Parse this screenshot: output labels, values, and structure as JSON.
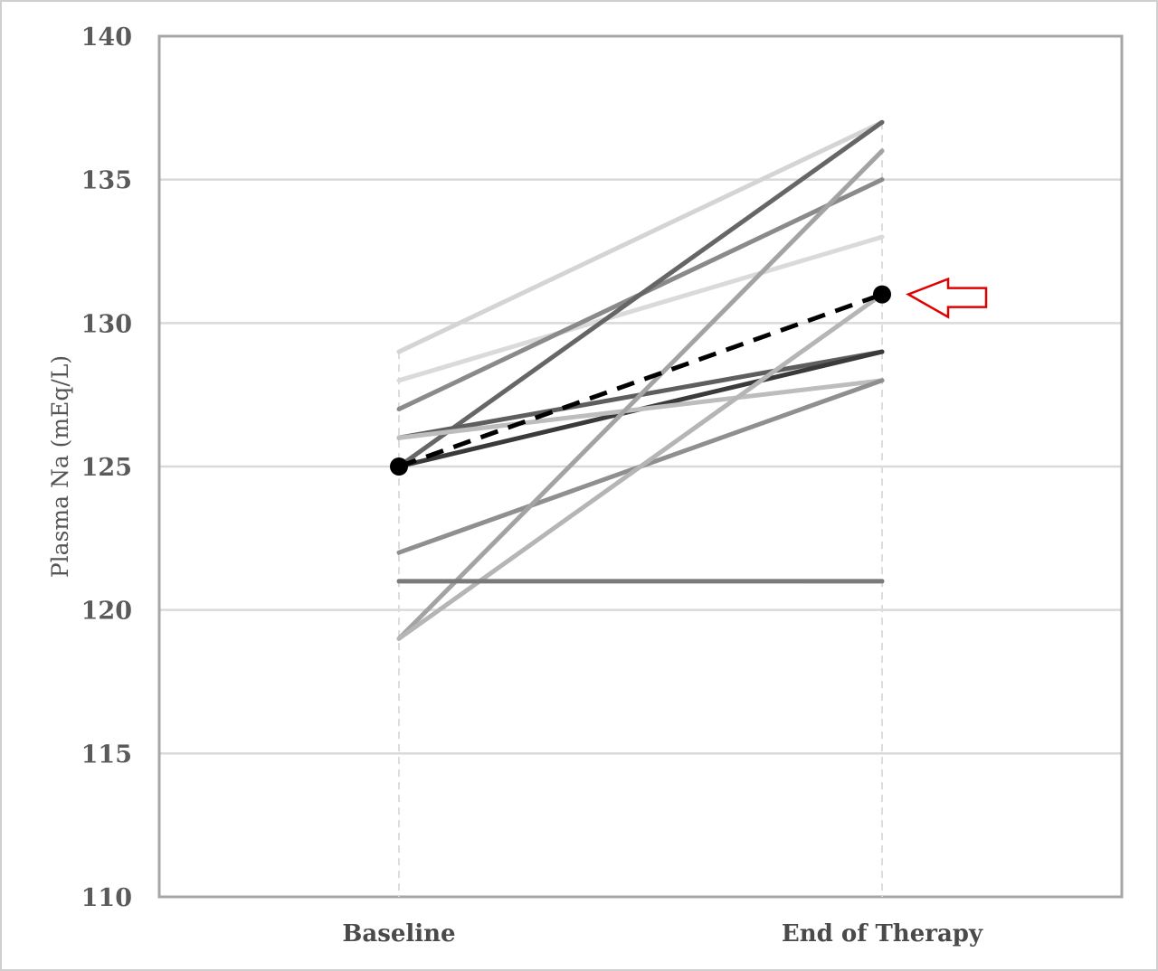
{
  "chart_data": {
    "type": "line",
    "title": "",
    "xlabel": "",
    "ylabel": "Plasma Na (mEq/L)",
    "categories": [
      "Baseline",
      "End of Therapy"
    ],
    "ylim": [
      110,
      140
    ],
    "yticks": [
      110,
      115,
      120,
      125,
      130,
      135,
      140
    ],
    "grid": true,
    "legend": "none",
    "series": [
      {
        "values": [
          129,
          137
        ],
        "color": "#d4d4d4",
        "style": "solid"
      },
      {
        "values": [
          128,
          133
        ],
        "color": "#dadada",
        "style": "solid"
      },
      {
        "values": [
          127,
          135
        ],
        "color": "#8a8a8a",
        "style": "solid"
      },
      {
        "values": [
          125,
          137
        ],
        "color": "#666666",
        "style": "solid"
      },
      {
        "values": [
          126,
          129
        ],
        "color": "#5e5e5e",
        "style": "solid"
      },
      {
        "values": [
          125,
          129
        ],
        "color": "#3a3a3a",
        "style": "solid"
      },
      {
        "values": [
          126,
          128
        ],
        "color": "#bdbdbd",
        "style": "solid"
      },
      {
        "values": [
          122,
          128
        ],
        "color": "#8f8f8f",
        "style": "solid"
      },
      {
        "values": [
          119,
          136
        ],
        "color": "#a3a3a3",
        "style": "solid"
      },
      {
        "values": [
          119,
          131
        ],
        "color": "#b5b5b5",
        "style": "solid"
      },
      {
        "values": [
          121,
          121
        ],
        "color": "#7a7a7a",
        "style": "solid"
      },
      {
        "values": [
          125,
          131
        ],
        "color": "#000000",
        "style": "dashed",
        "markers": true,
        "highlighted": true
      }
    ],
    "annotations": [
      {
        "type": "arrow",
        "direction": "left",
        "color": "#e00000",
        "points_to_value": 131,
        "category": "End of Therapy"
      }
    ]
  }
}
